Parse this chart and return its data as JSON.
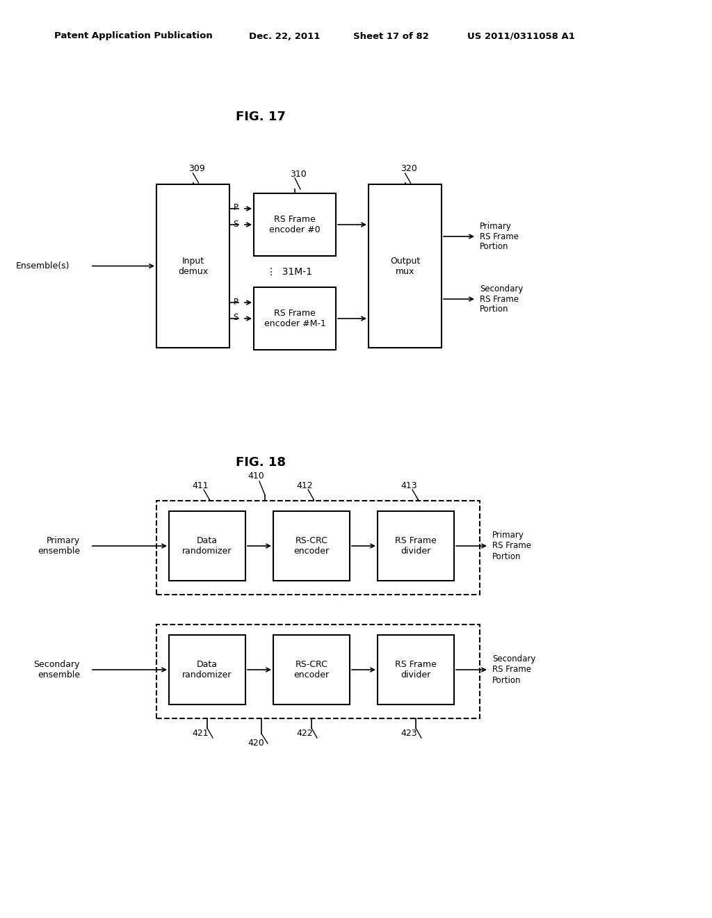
{
  "background_color": "#ffffff",
  "header_text": "Patent Application Publication",
  "header_date": "Dec. 22, 2011",
  "header_sheet": "Sheet 17 of 82",
  "header_patent": "US 2011/0311058 A1",
  "fig17_title": "FIG. 17",
  "fig18_title": "FIG. 18",
  "fig17": {
    "ensemble_label": "Ensemble(s)",
    "demux_label": "Input\ndemux",
    "demux_ref": "309",
    "encoder_group_ref": "310",
    "encoder0_label": "RS Frame\nencoder #0",
    "encoderM_label": "RS Frame\nencoder #M-1",
    "dots_label": "⋮  31M-1",
    "output_label": "Output\nmux",
    "output_ref": "320",
    "primary_out": "Primary\nRS Frame\nPortion",
    "secondary_out": "Secondary\nRS Frame\nPortion",
    "p_label": "P",
    "s_label": "S"
  },
  "fig18": {
    "primary_in": "Primary\nensemble",
    "secondary_in": "Secondary\nensemble",
    "primary_out": "Primary\nRS Frame\nPortion",
    "secondary_out": "Secondary\nRS Frame\nPortion",
    "block1_label": "Data\nrandomizer",
    "block2_label": "RS-CRC\nencoder",
    "block3_label": "RS Frame\ndivider",
    "ref_410": "410",
    "ref_411": "411",
    "ref_412": "412",
    "ref_413": "413",
    "ref_420": "420",
    "ref_421": "421",
    "ref_422": "422",
    "ref_423": "423"
  }
}
